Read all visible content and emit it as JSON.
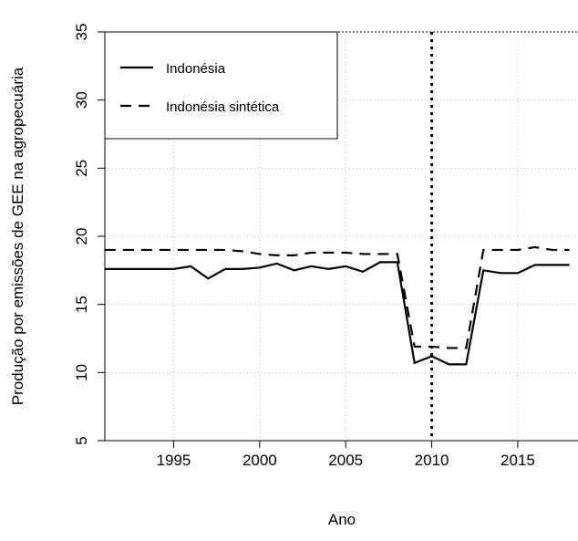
{
  "chart_data": {
    "type": "line",
    "x_label": "Ano",
    "y_label": "Produção por emissões de GEE na agropecuária",
    "x": [
      1991,
      1992,
      1993,
      1994,
      1995,
      1996,
      1997,
      1998,
      1999,
      2000,
      2001,
      2002,
      2003,
      2004,
      2005,
      2006,
      2007,
      2008,
      2009,
      2010,
      2011,
      2012,
      2013,
      2014,
      2015,
      2016,
      2017,
      2018
    ],
    "series": [
      {
        "name": "Indonésia",
        "color": "#000000",
        "dash": "solid",
        "values": [
          17.6,
          17.6,
          17.6,
          17.6,
          17.6,
          17.8,
          16.9,
          17.6,
          17.6,
          17.7,
          18.0,
          17.5,
          17.8,
          17.6,
          17.8,
          17.4,
          18.1,
          18.1,
          10.7,
          11.2,
          10.6,
          10.6,
          17.5,
          17.3,
          17.3,
          17.9,
          17.9,
          17.9
        ]
      },
      {
        "name": "Indonésia sintética",
        "color": "#000000",
        "dash": "dashed",
        "values": [
          19.0,
          19.0,
          19.0,
          19.0,
          19.0,
          19.0,
          19.0,
          19.0,
          18.9,
          18.7,
          18.6,
          18.6,
          18.8,
          18.8,
          18.8,
          18.7,
          18.7,
          18.7,
          11.9,
          11.9,
          11.8,
          11.8,
          19.0,
          19.0,
          19.0,
          19.2,
          19.0,
          19.0
        ]
      }
    ],
    "xlim": [
      1991,
      2018.5
    ],
    "xticks": [
      1995,
      2000,
      2005,
      2010,
      2015
    ],
    "ylim": [
      5,
      35
    ],
    "yticks": [
      5,
      10,
      15,
      20,
      25,
      30,
      35
    ],
    "grid": true,
    "vline": 2010,
    "legend": "top-left"
  }
}
